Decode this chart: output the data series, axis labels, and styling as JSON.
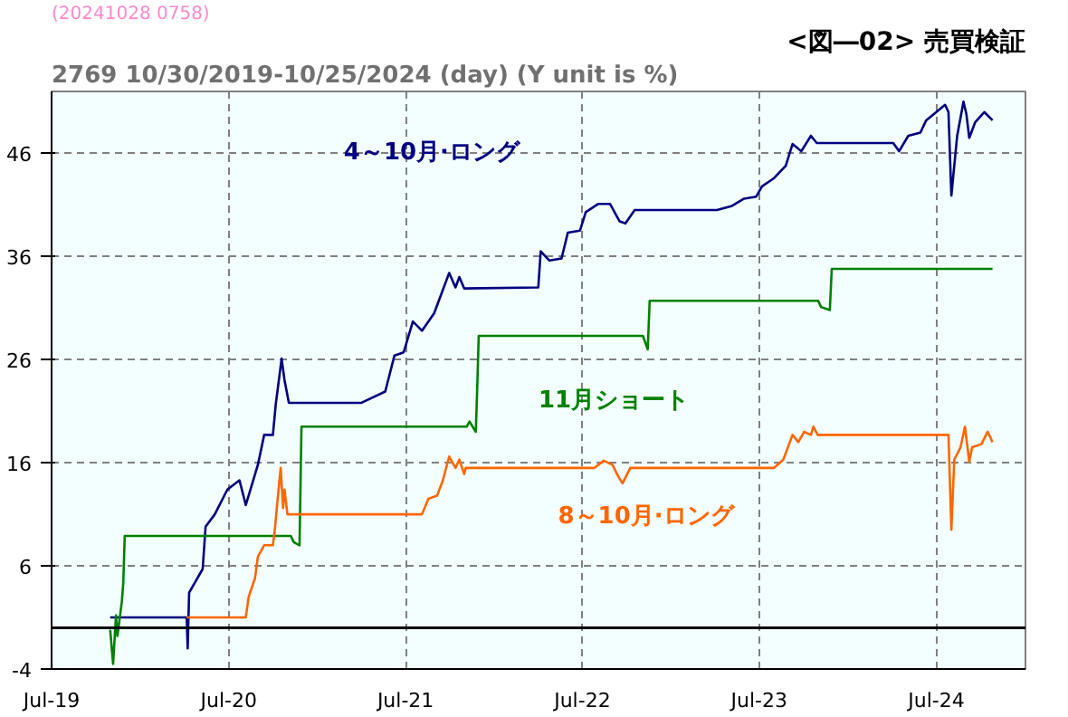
{
  "chart_data": {
    "type": "line",
    "title": "<図―02> 売買検証",
    "subtitle": "2769 10/30/2019-10/25/2024 (day)  (Y unit is %)",
    "annotations": [
      "(20241028 0758)"
    ],
    "xlim": [
      "2019-07-01",
      "2025-01-01"
    ],
    "xticks": [
      {
        "value": "2019-07-01",
        "label": "Jul-19"
      },
      {
        "value": "2020-07-01",
        "label": "Jul-20"
      },
      {
        "value": "2021-07-01",
        "label": "Jul-21"
      },
      {
        "value": "2022-07-01",
        "label": "Jul-22"
      },
      {
        "value": "2023-07-01",
        "label": "Jul-23"
      },
      {
        "value": "2024-07-01",
        "label": "Jul-24"
      }
    ],
    "ylim": [
      -4,
      52
    ],
    "yticks": [
      -4,
      6,
      16,
      26,
      36,
      46
    ],
    "grid": true,
    "legend": false,
    "marker": "none",
    "line_style": "solid",
    "ref_lines": [
      {
        "axis": "y",
        "value": 0,
        "label": null,
        "color": "#000000"
      }
    ],
    "series": [
      {
        "name": "4～10月·ロング",
        "color": "#000080",
        "x": [
          "2019-10-30",
          "2020-04-05",
          "2020-04-07",
          "2020-04-10",
          "2020-05-08",
          "2020-05-14",
          "2020-06-02",
          "2020-06-28",
          "2020-07-23",
          "2020-08-05",
          "2020-08-30",
          "2020-09-12",
          "2020-09-30",
          "2020-10-06",
          "2020-10-18",
          "2020-10-24",
          "2020-11-02",
          "2021-03-31",
          "2021-05-20",
          "2021-06-08",
          "2021-06-27",
          "2021-07-16",
          "2021-08-04",
          "2021-08-29",
          "2021-09-29",
          "2021-10-12",
          "2021-10-20",
          "2021-10-30",
          "2022-04-01",
          "2022-04-06",
          "2022-04-24",
          "2022-05-19",
          "2022-06-01",
          "2022-06-26",
          "2022-07-08",
          "2022-08-03",
          "2022-08-27",
          "2022-09-16",
          "2022-09-28",
          "2022-10-17",
          "2023-04-05",
          "2023-05-06",
          "2023-05-31",
          "2023-06-25",
          "2023-07-07",
          "2023-08-01",
          "2023-08-25",
          "2023-09-08",
          "2023-09-26",
          "2023-10-16",
          "2023-10-28",
          "2024-04-03",
          "2024-04-15",
          "2024-05-04",
          "2024-05-29",
          "2024-06-10",
          "2024-07-01",
          "2024-07-19",
          "2024-07-26",
          "2024-08-01",
          "2024-08-13",
          "2024-08-26",
          "2024-09-01",
          "2024-09-07",
          "2024-09-19",
          "2024-10-08",
          "2024-10-25"
        ],
        "values": [
          1.0,
          1.0,
          -2.0,
          3.4,
          5.7,
          9.8,
          11.0,
          13.4,
          14.3,
          11.9,
          15.8,
          18.7,
          18.7,
          21.7,
          26.1,
          24.0,
          21.8,
          21.8,
          22.9,
          26.4,
          26.7,
          29.7,
          28.8,
          30.5,
          34.4,
          33.0,
          34.0,
          32.9,
          33.0,
          36.5,
          35.6,
          35.8,
          38.3,
          38.5,
          40.3,
          41.1,
          41.1,
          39.4,
          39.2,
          40.5,
          40.5,
          40.9,
          41.6,
          41.8,
          42.8,
          43.6,
          44.8,
          46.9,
          46.2,
          47.7,
          47.0,
          47.0,
          46.2,
          47.7,
          48.0,
          49.2,
          50.0,
          50.7,
          50.0,
          41.9,
          47.7,
          51.0,
          49.8,
          47.5,
          49.0,
          50.0,
          49.2
        ]
      },
      {
        "name": "11月ショート",
        "color": "#008000",
        "x": [
          "2019-10-30",
          "2019-11-05",
          "2019-11-11",
          "2019-11-14",
          "2019-11-23",
          "2019-11-26",
          "2019-11-29",
          "2020-11-06",
          "2020-11-12",
          "2020-11-24",
          "2020-11-28",
          "2021-11-04",
          "2021-11-10",
          "2021-11-23",
          "2021-11-26",
          "2021-11-29",
          "2022-11-03",
          "2022-11-13",
          "2022-11-17",
          "2023-10-31",
          "2023-11-06",
          "2023-11-24",
          "2023-11-28",
          "2024-10-25"
        ],
        "values": [
          -0.2,
          -3.5,
          1.2,
          -0.8,
          2.5,
          4.3,
          8.9,
          8.9,
          8.3,
          8.0,
          19.5,
          19.5,
          20.0,
          19.0,
          23.4,
          28.3,
          28.3,
          27.0,
          31.7,
          31.7,
          31.1,
          30.8,
          34.8,
          34.8
        ]
      },
      {
        "name": "8～10月·ロング",
        "color": "#ff6600",
        "x": [
          "2020-04-05",
          "2020-08-05",
          "2020-08-11",
          "2020-08-24",
          "2020-08-30",
          "2020-09-12",
          "2020-09-30",
          "2020-10-04",
          "2020-10-08",
          "2020-10-16",
          "2020-10-21",
          "2020-10-24",
          "2020-10-30",
          "2021-08-04",
          "2021-08-17",
          "2021-09-04",
          "2021-09-16",
          "2021-09-29",
          "2021-10-12",
          "2021-10-20",
          "2021-10-30",
          "2021-11-02",
          "2022-07-26",
          "2022-08-14",
          "2022-09-01",
          "2022-09-14",
          "2022-09-22",
          "2022-10-08",
          "2022-10-21",
          "2023-08-01",
          "2023-08-20",
          "2023-09-08",
          "2023-09-20",
          "2023-10-02",
          "2023-10-16",
          "2023-10-21",
          "2023-10-30",
          "2024-07-26",
          "2024-08-01",
          "2024-08-07",
          "2024-08-20",
          "2024-08-29",
          "2024-09-07",
          "2024-09-13",
          "2024-10-02",
          "2024-10-15",
          "2024-10-25"
        ],
        "values": [
          1.0,
          1.0,
          3.0,
          4.8,
          6.9,
          8.0,
          8.0,
          9.5,
          11.6,
          15.5,
          11.6,
          13.4,
          11.0,
          11.0,
          12.5,
          12.8,
          14.3,
          16.6,
          15.5,
          16.3,
          14.9,
          15.5,
          15.5,
          16.2,
          15.8,
          14.6,
          14.0,
          15.5,
          15.5,
          15.5,
          16.3,
          18.7,
          18.0,
          19.0,
          18.7,
          19.5,
          18.7,
          18.7,
          9.5,
          16.3,
          17.5,
          19.5,
          16.1,
          17.5,
          17.8,
          19.0,
          18.0
        ]
      }
    ]
  }
}
